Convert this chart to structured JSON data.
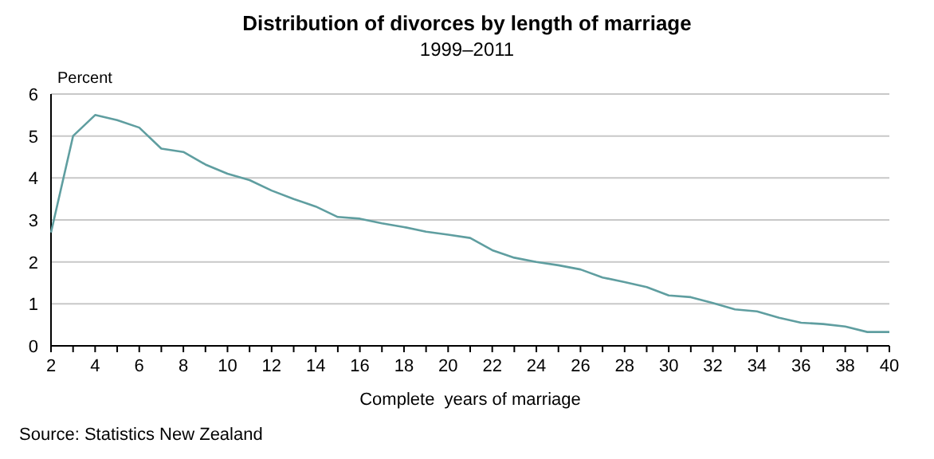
{
  "chart_data": {
    "type": "line",
    "title": "Distribution of divorces by length of marriage",
    "subtitle": "1999–2011",
    "ylabel": "Percent",
    "xlabel": "Complete  years of marriage",
    "annotations": [
      "Source: Statistics New Zealand"
    ],
    "x": [
      2,
      3,
      4,
      5,
      6,
      7,
      8,
      9,
      10,
      11,
      12,
      13,
      14,
      15,
      16,
      17,
      18,
      19,
      20,
      21,
      22,
      23,
      24,
      25,
      26,
      27,
      28,
      29,
      30,
      31,
      32,
      33,
      34,
      35,
      36,
      37,
      38,
      39,
      40
    ],
    "series": [
      {
        "color": "#5f9ea0",
        "values": [
          2.7,
          5.0,
          5.5,
          5.38,
          5.2,
          4.7,
          4.62,
          4.32,
          4.1,
          3.95,
          3.7,
          3.5,
          3.32,
          3.07,
          3.03,
          2.92,
          2.83,
          2.72,
          2.65,
          2.57,
          2.28,
          2.1,
          2.0,
          1.92,
          1.82,
          1.63,
          1.52,
          1.4,
          1.2,
          1.16,
          1.02,
          0.87,
          0.82,
          0.67,
          0.55,
          0.52,
          0.46,
          0.33,
          0.33
        ]
      }
    ],
    "xlim": [
      2,
      40
    ],
    "ylim": [
      0,
      6
    ],
    "xticks": [
      2,
      {
        "value": 3,
        "label": null
      },
      4,
      {
        "value": 5,
        "label": null
      },
      6,
      {
        "value": 7,
        "label": null
      },
      8,
      {
        "value": 9,
        "label": null
      },
      10,
      {
        "value": 11,
        "label": null
      },
      12,
      {
        "value": 13,
        "label": null
      },
      14,
      {
        "value": 15,
        "label": null
      },
      16,
      {
        "value": 17,
        "label": null
      },
      18,
      {
        "value": 19,
        "label": null
      },
      20,
      {
        "value": 21,
        "label": null
      },
      22,
      {
        "value": 23,
        "label": null
      },
      24,
      {
        "value": 25,
        "label": null
      },
      26,
      {
        "value": 27,
        "label": null
      },
      28,
      {
        "value": 29,
        "label": null
      },
      30,
      {
        "value": 31,
        "label": null
      },
      32,
      {
        "value": 33,
        "label": null
      },
      34,
      {
        "value": 35,
        "label": null
      },
      36,
      {
        "value": 37,
        "label": null
      },
      38,
      {
        "value": 39,
        "label": null
      },
      40
    ],
    "yticks": [
      0,
      1,
      2,
      3,
      4,
      5,
      6
    ],
    "grid": "y",
    "marker": "none",
    "line_style": "solid"
  }
}
